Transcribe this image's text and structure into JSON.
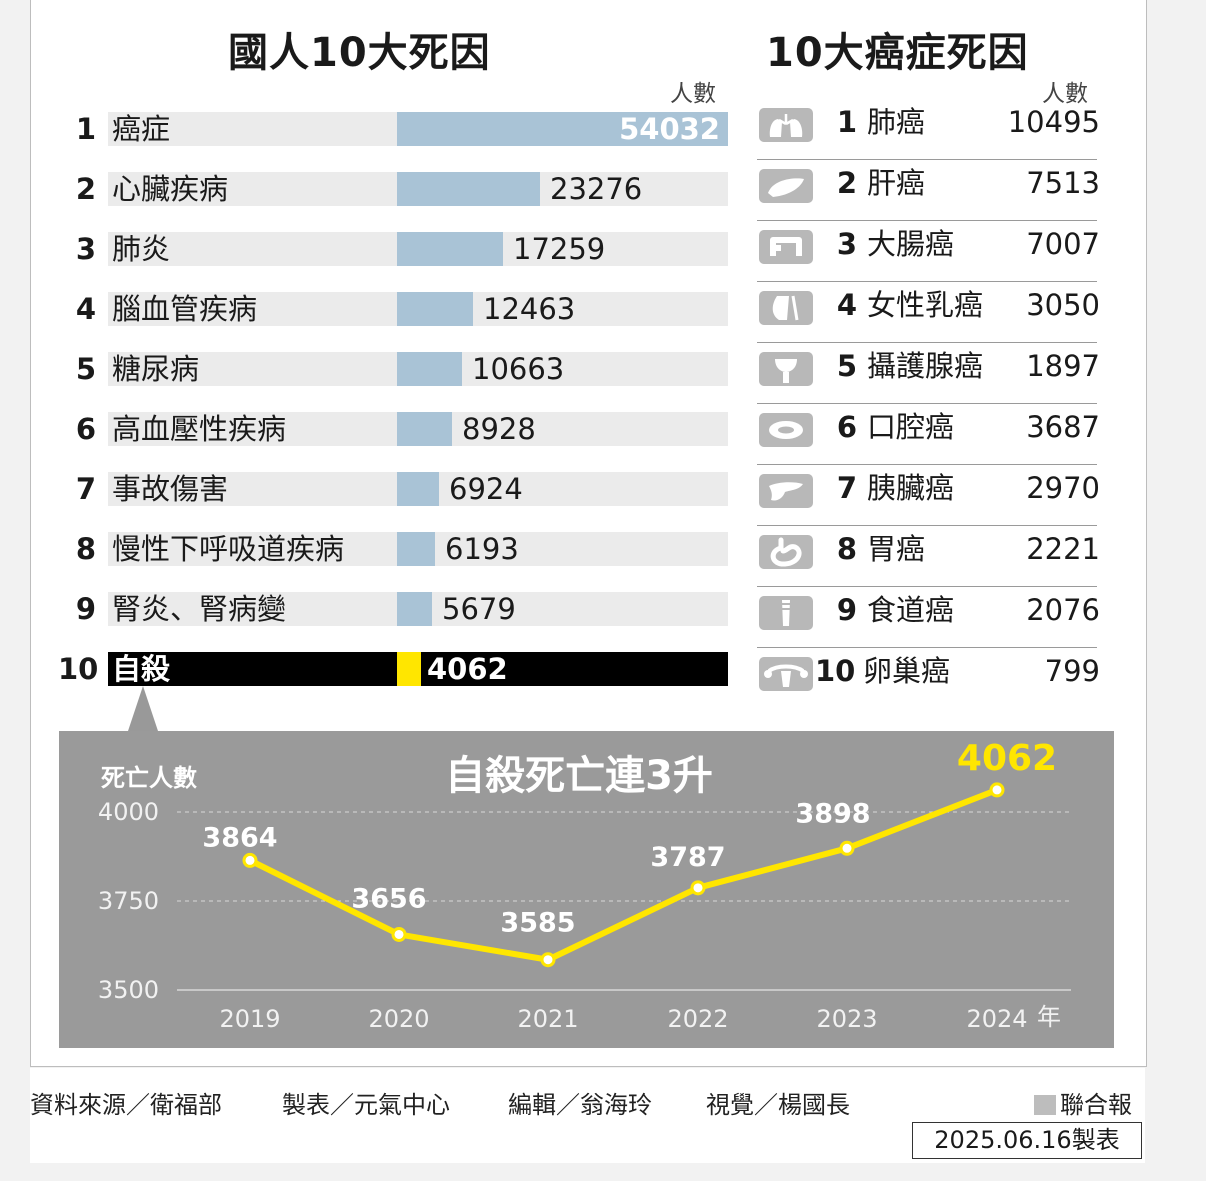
{
  "colors": {
    "bar": "#a9c3d6",
    "highlight": "#ffe600",
    "panel": "#9a9a9a",
    "line": "#ffe600"
  },
  "left": {
    "title": "國人10大死因",
    "unit": "人數",
    "rows": [
      {
        "rank": "1",
        "name": "癌症",
        "value": "54032"
      },
      {
        "rank": "2",
        "name": "心臟疾病",
        "value": "23276"
      },
      {
        "rank": "3",
        "name": "肺炎",
        "value": "17259"
      },
      {
        "rank": "4",
        "name": "腦血管疾病",
        "value": "12463"
      },
      {
        "rank": "5",
        "name": "糖尿病",
        "value": "10663"
      },
      {
        "rank": "6",
        "name": "高血壓性疾病",
        "value": "8928"
      },
      {
        "rank": "7",
        "name": "事故傷害",
        "value": "6924"
      },
      {
        "rank": "8",
        "name": "慢性下呼吸道疾病",
        "value": "6193"
      },
      {
        "rank": "9",
        "name": "腎炎、腎病變",
        "value": "5679"
      },
      {
        "rank": "10",
        "name": "自殺",
        "value": "4062"
      }
    ]
  },
  "right": {
    "title": "10大癌症死因",
    "unit": "人數",
    "rows": [
      {
        "rank": "1",
        "name": "肺癌",
        "value": "10495",
        "icon": "lung-icon"
      },
      {
        "rank": "2",
        "name": "肝癌",
        "value": "7513",
        "icon": "liver-icon"
      },
      {
        "rank": "3",
        "name": "大腸癌",
        "value": "7007",
        "icon": "colon-icon"
      },
      {
        "rank": "4",
        "name": "女性乳癌",
        "value": "3050",
        "icon": "breast-icon"
      },
      {
        "rank": "5",
        "name": "攝護腺癌",
        "value": "1897",
        "icon": "prostate-icon"
      },
      {
        "rank": "6",
        "name": "口腔癌",
        "value": "3687",
        "icon": "mouth-icon"
      },
      {
        "rank": "7",
        "name": "胰臟癌",
        "value": "2970",
        "icon": "pancreas-icon"
      },
      {
        "rank": "8",
        "name": "胃癌",
        "value": "2221",
        "icon": "stomach-icon"
      },
      {
        "rank": "9",
        "name": "食道癌",
        "value": "2076",
        "icon": "esophagus-icon"
      },
      {
        "rank": "10",
        "name": "卵巢癌",
        "value": "799",
        "icon": "ovary-icon"
      }
    ]
  },
  "trend": {
    "title": "自殺死亡連3升",
    "ylabel": "死亡人數",
    "year_suffix": "年"
  },
  "chart_data": [
    {
      "type": "bar",
      "title": "國人10大死因",
      "ylabel": "人數",
      "categories": [
        "癌症",
        "心臟疾病",
        "肺炎",
        "腦血管疾病",
        "糖尿病",
        "高血壓性疾病",
        "事故傷害",
        "慢性下呼吸道疾病",
        "腎炎、腎病變",
        "自殺"
      ],
      "values": [
        54032,
        23276,
        17259,
        12463,
        10663,
        8928,
        6924,
        6193,
        5679,
        4062
      ]
    },
    {
      "type": "table",
      "title": "10大癌症死因",
      "ylabel": "人數",
      "categories": [
        "肺癌",
        "肝癌",
        "大腸癌",
        "女性乳癌",
        "攝護腺癌",
        "口腔癌",
        "胰臟癌",
        "胃癌",
        "食道癌",
        "卵巢癌"
      ],
      "values": [
        10495,
        7513,
        7007,
        3050,
        1897,
        3687,
        2970,
        2221,
        2076,
        799
      ]
    },
    {
      "type": "line",
      "title": "自殺死亡連3升",
      "ylabel": "死亡人數",
      "x": [
        "2019",
        "2020",
        "2021",
        "2022",
        "2023",
        "2024"
      ],
      "values": [
        3864,
        3656,
        3585,
        3787,
        3898,
        4062
      ],
      "yticks": [
        "3500",
        "3750",
        "4000"
      ],
      "ylim": [
        3500,
        4000
      ],
      "grid": true
    }
  ],
  "footer": {
    "source": "資料來源／衛福部",
    "maker": "製表／元氣中心",
    "editor": "編輯／翁海玲",
    "visual": "視覺／楊國長",
    "brand": "聯合報",
    "date": "2025.06.16製表"
  }
}
